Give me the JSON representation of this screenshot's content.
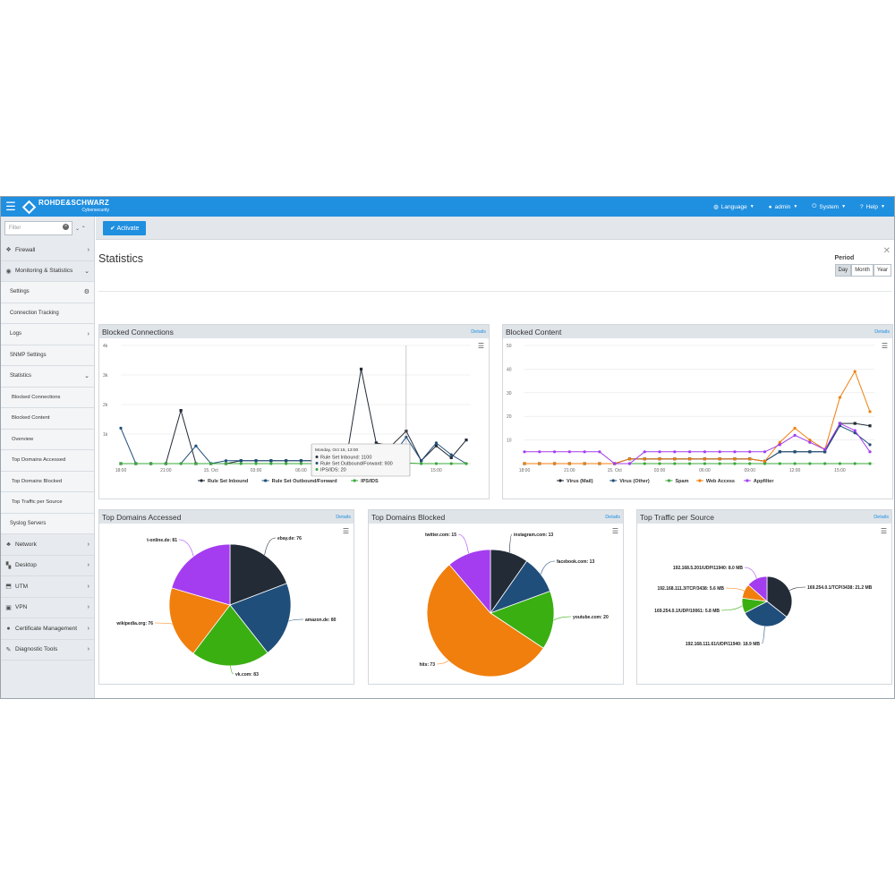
{
  "topbar": {
    "brand": "ROHDE&SCHWARZ",
    "brand_sub": "Cybersecurity",
    "menu": [
      {
        "label": "Language",
        "icon": "globe-icon"
      },
      {
        "label": "admin",
        "icon": "user-icon"
      },
      {
        "label": "System",
        "icon": "power-icon"
      },
      {
        "label": "Help",
        "icon": "question-icon"
      }
    ],
    "color": "#1f8fe0"
  },
  "sidebar": {
    "filter_placeholder": "Filter",
    "items": [
      {
        "label": "Firewall",
        "level": "top",
        "icon": "firewall-icon",
        "arrow": "›"
      },
      {
        "label": "Monitoring & Statistics",
        "level": "top",
        "icon": "eye-icon",
        "arrow": "⌄"
      },
      {
        "label": "Settings",
        "level": "sub",
        "arrow": "⚙"
      },
      {
        "label": "Connection Tracking",
        "level": "sub",
        "arrow": ""
      },
      {
        "label": "Logs",
        "level": "sub",
        "arrow": "›"
      },
      {
        "label": "SNMP Settings",
        "level": "sub",
        "arrow": ""
      },
      {
        "label": "Statistics",
        "level": "sub",
        "arrow": "⌄"
      },
      {
        "label": "Blocked Connections",
        "level": "sub2",
        "arrow": ""
      },
      {
        "label": "Blocked Content",
        "level": "sub2",
        "arrow": ""
      },
      {
        "label": "Overview",
        "level": "sub2",
        "arrow": ""
      },
      {
        "label": "Top Domains Accessed",
        "level": "sub2",
        "arrow": ""
      },
      {
        "label": "Top Domains Blocked",
        "level": "sub2",
        "arrow": ""
      },
      {
        "label": "Top Traffic per Source",
        "level": "sub2",
        "arrow": ""
      },
      {
        "label": "Syslog Servers",
        "level": "sub",
        "arrow": ""
      },
      {
        "label": "Network",
        "level": "top",
        "icon": "network-icon",
        "arrow": "›"
      },
      {
        "label": "Desktop",
        "level": "top",
        "icon": "desktop-icon",
        "arrow": "›"
      },
      {
        "label": "UTM",
        "level": "top",
        "icon": "shield-icon",
        "arrow": "›"
      },
      {
        "label": "VPN",
        "level": "top",
        "icon": "lock-icon",
        "arrow": "›"
      },
      {
        "label": "Certificate Management",
        "level": "top",
        "icon": "certificate-icon",
        "arrow": "›"
      },
      {
        "label": "Diagnostic Tools",
        "level": "top",
        "icon": "wrench-icon",
        "arrow": "›"
      }
    ]
  },
  "main": {
    "activate_label": "Activate",
    "title": "Statistics",
    "period": {
      "label": "Period",
      "options": [
        "Day",
        "Month",
        "Year"
      ],
      "selected": "Day"
    },
    "details_label": "Details"
  },
  "panels": {
    "blocked_connections": "Blocked Connections",
    "blocked_content": "Blocked Content",
    "top_domains_accessed": "Top Domains Accessed",
    "top_domains_blocked": "Top Domains Blocked",
    "top_traffic": "Top Traffic per Source"
  },
  "chart_data": [
    {
      "id": "blocked_connections",
      "type": "line",
      "title": "Blocked Connections",
      "ylim": [
        0,
        4000
      ],
      "y_ticks": [
        "",
        "1k",
        "2k",
        "3k",
        "4k"
      ],
      "x_tick_labels": [
        "18:00",
        "21:00",
        "15. Oct",
        "03:00",
        "06:00",
        "09:00",
        "12:00",
        "15:00"
      ],
      "x_tick_index": [
        0,
        3,
        6,
        9,
        12,
        15,
        18,
        21
      ],
      "grid": true,
      "legend": "bottom",
      "tooltip": {
        "title": "Monday, Oct 15, 13:00",
        "lines": [
          "Rule Set Inbound: 1100",
          "Rule Set Outbound/Forward: 900",
          "IPS/IDS: 20"
        ]
      },
      "series": [
        {
          "name": "Rule Set Inbound",
          "color": "#222b36",
          "values": [
            0,
            0,
            0,
            0,
            1800,
            0,
            0,
            0,
            100,
            100,
            100,
            100,
            100,
            100,
            100,
            100,
            3200,
            700,
            600,
            1100,
            100,
            600,
            200,
            800
          ]
        },
        {
          "name": "Rule Set Outbound/Forward",
          "color": "#1f4e7a",
          "values": [
            1200,
            0,
            0,
            0,
            0,
            600,
            0,
            100,
            100,
            100,
            100,
            100,
            100,
            100,
            100,
            100,
            100,
            100,
            200,
            900,
            100,
            700,
            300,
            0
          ]
        },
        {
          "name": "IPS/IDS",
          "color": "#3aa83a",
          "values": [
            0,
            0,
            0,
            0,
            0,
            0,
            0,
            0,
            0,
            0,
            0,
            0,
            0,
            0,
            0,
            0,
            0,
            0,
            0,
            20,
            0,
            0,
            0,
            0
          ]
        }
      ]
    },
    {
      "id": "blocked_content",
      "type": "line",
      "title": "Blocked Content",
      "ylim": [
        0,
        50
      ],
      "y_ticks": [
        "",
        "10",
        "20",
        "30",
        "40",
        "50"
      ],
      "x_tick_labels": [
        "18:00",
        "21:00",
        "15. Oct",
        "03:00",
        "06:00",
        "09:00",
        "12:00",
        "15:00"
      ],
      "x_tick_index": [
        0,
        3,
        6,
        9,
        12,
        15,
        18,
        21
      ],
      "grid": true,
      "legend": "bottom",
      "series": [
        {
          "name": "Virus (Mail)",
          "color": "#222b36",
          "values": [
            0,
            0,
            0,
            0,
            0,
            0,
            0,
            2,
            2,
            2,
            2,
            2,
            2,
            2,
            2,
            2,
            1,
            5,
            5,
            5,
            5,
            17,
            17,
            16
          ]
        },
        {
          "name": "Virus (Other)",
          "color": "#1f4e7a",
          "values": [
            0,
            0,
            0,
            0,
            0,
            0,
            0,
            2,
            2,
            2,
            2,
            2,
            2,
            2,
            2,
            2,
            1,
            5,
            5,
            5,
            5,
            16,
            13,
            8
          ]
        },
        {
          "name": "Spam",
          "color": "#3aa83a",
          "values": [
            0,
            0,
            0,
            0,
            0,
            0,
            0,
            0,
            0,
            0,
            0,
            0,
            0,
            0,
            0,
            0,
            0,
            0,
            0,
            0,
            0,
            0,
            0,
            0
          ]
        },
        {
          "name": "Web Access",
          "color": "#f07f0e",
          "values": [
            0,
            0,
            0,
            0,
            0,
            0,
            0,
            2,
            2,
            2,
            2,
            2,
            2,
            2,
            2,
            2,
            1,
            9,
            15,
            10,
            6,
            28,
            39,
            22
          ]
        },
        {
          "name": "Appfilter",
          "color": "#a43cf0",
          "values": [
            5,
            5,
            5,
            5,
            5,
            5,
            0,
            0,
            5,
            5,
            5,
            5,
            5,
            5,
            5,
            5,
            5,
            8,
            12,
            9,
            6,
            17,
            14,
            5
          ]
        }
      ]
    },
    {
      "id": "top_domains_accessed",
      "type": "pie",
      "title": "Top Domains Accessed",
      "slices": [
        {
          "label": "ebay.de",
          "value": 76,
          "color": "#222b36"
        },
        {
          "label": "amazon.de",
          "value": 80,
          "color": "#1f4e7a"
        },
        {
          "label": "vk.com",
          "value": 83,
          "color": "#3aaf12"
        },
        {
          "label": "wikipedia.org",
          "value": 76,
          "color": "#f07f0e"
        },
        {
          "label": "t-online.de",
          "value": 81,
          "color": "#a43cf0"
        }
      ]
    },
    {
      "id": "top_domains_blocked",
      "type": "pie",
      "title": "Top Domains Blocked",
      "slices": [
        {
          "label": "instagram.com",
          "value": 13,
          "color": "#222b36"
        },
        {
          "label": "facebook.com",
          "value": 13,
          "color": "#1f4e7a"
        },
        {
          "label": "youtube.com",
          "value": 20,
          "color": "#3aaf12"
        },
        {
          "label": "hits",
          "value": 73,
          "color": "#f07f0e"
        },
        {
          "label": "twitter.com",
          "value": 15,
          "color": "#a43cf0"
        }
      ]
    },
    {
      "id": "top_traffic",
      "type": "pie",
      "title": "Top Traffic per Source",
      "slices": [
        {
          "label": "169.254.0.1/TCP/3438: 21.2 MB",
          "value": 21.2,
          "color": "#222b36"
        },
        {
          "label": "192.168.111.61/UDP/11940: 18.9 MB",
          "value": 18.9,
          "color": "#1f4e7a"
        },
        {
          "label": "169.254.0.1/UDP/10061: 5.8 MB",
          "value": 5.8,
          "color": "#3aaf12"
        },
        {
          "label": "192.168.111.3/TCP/3438: 5.6 MB",
          "value": 5.6,
          "color": "#f07f0e"
        },
        {
          "label": "192.168.5.201/UDP/11940: 8.0 MB",
          "value": 8.0,
          "color": "#a43cf0"
        }
      ]
    }
  ]
}
